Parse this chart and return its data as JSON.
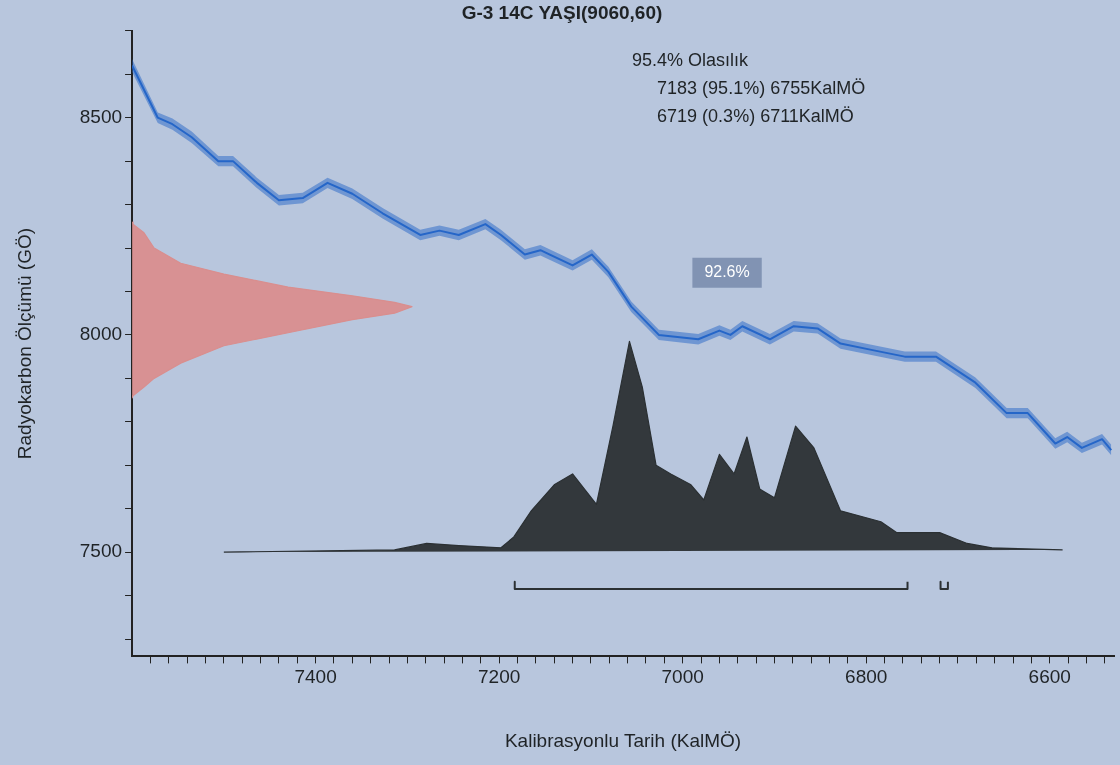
{
  "chart_data": {
    "type": "line",
    "title": "G-3 14C YAŞI(9060,60)",
    "xlabel": "Kalibrasyonlu Tarih (KalMÖ)",
    "ylabel": "Radyokarbon Ölçümü (GÖ)",
    "annotations": [
      "95.4% Olasılık",
      "7183 (95.1%) 6755KalMÖ",
      "6719 (0.3%) 6711KalMÖ",
      "92.6%"
    ],
    "xlim": [
      7600,
      6530
    ],
    "ylim": [
      7260,
      8700
    ],
    "xticks": [
      {
        "value": 7580,
        "label": null
      },
      {
        "value": 7560,
        "label": null
      },
      {
        "value": 7540,
        "label": null
      },
      {
        "value": 7520,
        "label": null
      },
      {
        "value": 7500,
        "label": null
      },
      {
        "value": 7480,
        "label": null
      },
      {
        "value": 7460,
        "label": null
      },
      {
        "value": 7440,
        "label": null
      },
      {
        "value": 7420,
        "label": null
      },
      7400,
      {
        "value": 7380,
        "label": null
      },
      {
        "value": 7360,
        "label": null
      },
      {
        "value": 7340,
        "label": null
      },
      {
        "value": 7320,
        "label": null
      },
      {
        "value": 7300,
        "label": null
      },
      {
        "value": 7280,
        "label": null
      },
      {
        "value": 7260,
        "label": null
      },
      {
        "value": 7240,
        "label": null
      },
      {
        "value": 7220,
        "label": null
      },
      7200,
      {
        "value": 7180,
        "label": null
      },
      {
        "value": 7160,
        "label": null
      },
      {
        "value": 7140,
        "label": null
      },
      {
        "value": 7120,
        "label": null
      },
      {
        "value": 7100,
        "label": null
      },
      {
        "value": 7080,
        "label": null
      },
      {
        "value": 7060,
        "label": null
      },
      {
        "value": 7040,
        "label": null
      },
      {
        "value": 7020,
        "label": null
      },
      7000,
      {
        "value": 6980,
        "label": null
      },
      {
        "value": 6960,
        "label": null
      },
      {
        "value": 6940,
        "label": null
      },
      {
        "value": 6920,
        "label": null
      },
      {
        "value": 6900,
        "label": null
      },
      {
        "value": 6880,
        "label": null
      },
      {
        "value": 6860,
        "label": null
      },
      {
        "value": 6840,
        "label": null
      },
      {
        "value": 6820,
        "label": null
      },
      6800,
      {
        "value": 6780,
        "label": null
      },
      {
        "value": 6760,
        "label": null
      },
      {
        "value": 6740,
        "label": null
      },
      {
        "value": 6720,
        "label": null
      },
      {
        "value": 6700,
        "label": null
      },
      {
        "value": 6680,
        "label": null
      },
      {
        "value": 6660,
        "label": null
      },
      {
        "value": 6640,
        "label": null
      },
      {
        "value": 6620,
        "label": null
      },
      6600,
      {
        "value": 6580,
        "label": null
      },
      {
        "value": 6560,
        "label": null
      },
      {
        "value": 6540,
        "label": null
      }
    ],
    "yticks": [
      {
        "value": 7300,
        "label": null
      },
      {
        "value": 7400,
        "label": null
      },
      7500,
      {
        "value": 7600,
        "label": null
      },
      {
        "value": 7700,
        "label": null
      },
      {
        "value": 7800,
        "label": null
      },
      {
        "value": 7900,
        "label": null
      },
      8000,
      {
        "value": 8100,
        "label": null
      },
      {
        "value": 8200,
        "label": null
      },
      {
        "value": 8300,
        "label": null
      },
      {
        "value": 8400,
        "label": null
      },
      8500,
      {
        "value": 8600,
        "label": null
      },
      {
        "value": 8700,
        "label": null
      }
    ],
    "series": [
      {
        "color": "#2566c8",
        "x": [
          7600,
          7572,
          7556,
          7535,
          7506,
          7490,
          7464,
          7440,
          7414,
          7387,
          7360,
          7327,
          7286,
          7265,
          7244,
          7215,
          7198,
          7172,
          7155,
          7120,
          7099,
          7081,
          7056,
          7026,
          6983,
          6960,
          6948,
          6935,
          6905,
          6879,
          6853,
          6828,
          6793,
          6758,
          6724,
          6681,
          6647,
          6624,
          6594,
          6581,
          6565,
          6543,
          6533
        ],
        "values": [
          8620,
          8500,
          8485,
          8455,
          8400,
          8400,
          8350,
          8310,
          8315,
          8350,
          8325,
          8280,
          8230,
          8240,
          8230,
          8255,
          8230,
          8185,
          8195,
          8160,
          8185,
          8145,
          8065,
          8000,
          7990,
          8010,
          8000,
          8020,
          7990,
          8020,
          8015,
          7980,
          7965,
          7950,
          7950,
          7890,
          7820,
          7820,
          7750,
          7765,
          7740,
          7760,
          7735
        ],
        "lower": [
          8605,
          8488,
          8472,
          8442,
          8388,
          8388,
          8338,
          8298,
          8303,
          8338,
          8313,
          8268,
          8218,
          8228,
          8218,
          8243,
          8218,
          8173,
          8183,
          8148,
          8173,
          8133,
          8053,
          7988,
          7978,
          7998,
          7988,
          8008,
          7978,
          8008,
          8003,
          7968,
          7953,
          7938,
          7938,
          7878,
          7808,
          7808,
          7738,
          7753,
          7728,
          7748,
          7723
        ],
        "upper": [
          8635,
          8512,
          8498,
          8468,
          8412,
          8412,
          8362,
          8322,
          8327,
          8362,
          8337,
          8292,
          8242,
          8252,
          8242,
          8267,
          8242,
          8197,
          8207,
          8172,
          8197,
          8157,
          8077,
          8012,
          8002,
          8022,
          8012,
          8032,
          8002,
          8032,
          8027,
          7992,
          7977,
          7962,
          7962,
          7902,
          7832,
          7832,
          7762,
          7777,
          7752,
          7772,
          7747
        ]
      },
      {
        "type": "area",
        "color": "#d98e8e",
        "x": [
          7600,
          7599,
          7587,
          7576,
          7547,
          7500,
          7430,
          7360,
          7314,
          7295,
          7314,
          7360,
          7430,
          7500,
          7547,
          7576,
          7587,
          7599,
          7600
        ],
        "values": [
          8260,
          8255,
          8235,
          8200,
          8165,
          8140,
          8110,
          8090,
          8075,
          8065,
          8050,
          8035,
          8005,
          7975,
          7935,
          7900,
          7880,
          7860,
          7855
        ]
      },
      {
        "type": "area",
        "color": "#2b3033",
        "x": [
          7500,
          7314,
          7279,
          7244,
          7198,
          7184,
          7165,
          7140,
          7120,
          7094,
          7076,
          7058,
          7044,
          7029,
          7013,
          6991,
          6977,
          6960,
          6944,
          6930,
          6916,
          6900,
          6877,
          6857,
          6828,
          6784,
          6767,
          6720,
          6690,
          6663,
          6586
        ],
        "values": [
          7500,
          7505,
          7520,
          7515,
          7510,
          7535,
          7595,
          7655,
          7680,
          7610,
          7790,
          7985,
          7880,
          7700,
          7680,
          7655,
          7620,
          7725,
          7680,
          7765,
          7645,
          7625,
          7790,
          7740,
          7595,
          7570,
          7545,
          7545,
          7520,
          7510,
          7505
        ]
      },
      {
        "color": "#2b3033",
        "x": [
          7183,
          7183,
          6755,
          6755
        ],
        "values": [
          7432,
          7415,
          7415,
          7432
        ]
      },
      {
        "color": "#2b3033",
        "x": [
          6719,
          6719,
          6711,
          6711
        ],
        "values": [
          7432,
          7415,
          7415,
          7432
        ]
      }
    ]
  }
}
